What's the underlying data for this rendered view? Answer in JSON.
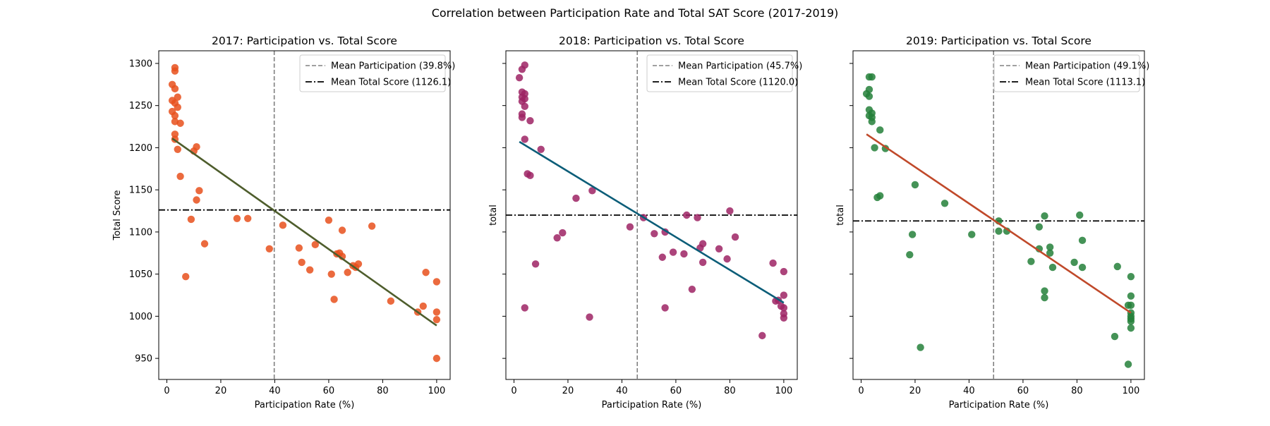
{
  "figure": {
    "title": "Correlation between Participation Rate and Total SAT Score (2017-2019)"
  },
  "chart_data": [
    {
      "type": "scatter",
      "title": "2017: Participation vs. Total Score",
      "xlabel": "Participation Rate (%)",
      "ylabel": "Total Score",
      "xlim": [
        -3,
        105
      ],
      "ylim": [
        925,
        1315
      ],
      "xticks": [
        0,
        20,
        40,
        60,
        80,
        100
      ],
      "yticks": [
        950,
        1000,
        1050,
        1100,
        1150,
        1200,
        1250,
        1300
      ],
      "show_yticklabels": true,
      "grid": false,
      "legend_position": "top-right",
      "point_color": "#e8501c",
      "fit_color": "#4e5d2c",
      "mean_x_label": "Mean Participation (39.8%)",
      "mean_y_label": "Mean Total Score (1126.1)",
      "mean_x": 39.8,
      "mean_y": 1126.1,
      "fit_line": {
        "x": [
          2,
          100
        ],
        "y": [
          1211,
          989
        ]
      },
      "points": [
        [
          3,
          1295
        ],
        [
          3,
          1291
        ],
        [
          2,
          1275
        ],
        [
          3,
          1270
        ],
        [
          4,
          1260
        ],
        [
          2,
          1256
        ],
        [
          3,
          1253
        ],
        [
          4,
          1248
        ],
        [
          2,
          1243
        ],
        [
          3,
          1238
        ],
        [
          3,
          1231
        ],
        [
          5,
          1229
        ],
        [
          3,
          1216
        ],
        [
          3,
          1210
        ],
        [
          4,
          1198
        ],
        [
          10,
          1196
        ],
        [
          11,
          1201
        ],
        [
          5,
          1166
        ],
        [
          12,
          1149
        ],
        [
          11,
          1138
        ],
        [
          9,
          1115
        ],
        [
          14,
          1086
        ],
        [
          7,
          1047
        ],
        [
          26,
          1116
        ],
        [
          30,
          1116
        ],
        [
          43,
          1108
        ],
        [
          38,
          1080
        ],
        [
          60,
          1114
        ],
        [
          65,
          1102
        ],
        [
          76,
          1107
        ],
        [
          49,
          1081
        ],
        [
          55,
          1085
        ],
        [
          50,
          1064
        ],
        [
          53,
          1055
        ],
        [
          63,
          1074
        ],
        [
          64,
          1075
        ],
        [
          65,
          1071
        ],
        [
          61,
          1050
        ],
        [
          67,
          1052
        ],
        [
          70,
          1058
        ],
        [
          71,
          1062
        ],
        [
          69,
          1060
        ],
        [
          62,
          1020
        ],
        [
          83,
          1018
        ],
        [
          93,
          1005
        ],
        [
          95,
          1012
        ],
        [
          96,
          1052
        ],
        [
          100,
          1041
        ],
        [
          100,
          1005
        ],
        [
          100,
          996
        ],
        [
          100,
          950
        ]
      ]
    },
    {
      "type": "scatter",
      "title": "2018: Participation vs. Total Score",
      "xlabel": "Participation Rate (%)",
      "ylabel": "total",
      "xlim": [
        -3,
        105
      ],
      "ylim": [
        925,
        1315
      ],
      "xticks": [
        0,
        20,
        40,
        60,
        80,
        100
      ],
      "yticks": [
        950,
        1000,
        1050,
        1100,
        1150,
        1200,
        1250,
        1300
      ],
      "show_yticklabels": false,
      "grid": false,
      "legend_position": "top-right",
      "point_color": "#9e2364",
      "fit_color": "#0b5d78",
      "mean_x_label": "Mean Participation (45.7%)",
      "mean_y_label": "Mean Total Score (1120.0)",
      "mean_x": 45.7,
      "mean_y": 1120.0,
      "fit_line": {
        "x": [
          2,
          100
        ],
        "y": [
          1207,
          1016
        ]
      },
      "points": [
        [
          4,
          1298
        ],
        [
          3,
          1293
        ],
        [
          2,
          1283
        ],
        [
          3,
          1266
        ],
        [
          4,
          1264
        ],
        [
          3,
          1260
        ],
        [
          4,
          1258
        ],
        [
          3,
          1255
        ],
        [
          4,
          1249
        ],
        [
          3,
          1240
        ],
        [
          3,
          1236
        ],
        [
          6,
          1232
        ],
        [
          4,
          1210
        ],
        [
          10,
          1198
        ],
        [
          5,
          1169
        ],
        [
          6,
          1167
        ],
        [
          29,
          1149
        ],
        [
          23,
          1140
        ],
        [
          18,
          1099
        ],
        [
          16,
          1093
        ],
        [
          8,
          1062
        ],
        [
          4,
          1010
        ],
        [
          28,
          999
        ],
        [
          43,
          1106
        ],
        [
          48,
          1117
        ],
        [
          52,
          1098
        ],
        [
          56,
          1100
        ],
        [
          55,
          1070
        ],
        [
          59,
          1076
        ],
        [
          63,
          1074
        ],
        [
          64,
          1120
        ],
        [
          68,
          1117
        ],
        [
          69,
          1081
        ],
        [
          70,
          1086
        ],
        [
          70,
          1064
        ],
        [
          76,
          1080
        ],
        [
          80,
          1125
        ],
        [
          82,
          1094
        ],
        [
          79,
          1068
        ],
        [
          66,
          1032
        ],
        [
          56,
          1010
        ],
        [
          92,
          977
        ],
        [
          96,
          1063
        ],
        [
          97,
          1018
        ],
        [
          98,
          1019
        ],
        [
          99,
          1012
        ],
        [
          100,
          1010
        ],
        [
          100,
          1053
        ],
        [
          100,
          1025
        ],
        [
          100,
          1003
        ],
        [
          100,
          998
        ]
      ]
    },
    {
      "type": "scatter",
      "title": "2019: Participation vs. Total Score",
      "xlabel": "Participation Rate (%)",
      "ylabel": "total",
      "xlim": [
        -3,
        105
      ],
      "ylim": [
        925,
        1315
      ],
      "xticks": [
        0,
        20,
        40,
        60,
        80,
        100
      ],
      "yticks": [
        950,
        1000,
        1050,
        1100,
        1150,
        1200,
        1250,
        1300
      ],
      "show_yticklabels": false,
      "grid": false,
      "legend_position": "top-right",
      "point_color": "#24803a",
      "fit_color": "#c0492a",
      "mean_x_label": "Mean Participation (49.1%)",
      "mean_y_label": "Mean Total Score (1113.1)",
      "mean_x": 49.1,
      "mean_y": 1113.1,
      "fit_line": {
        "x": [
          2,
          100
        ],
        "y": [
          1216,
          1004
        ]
      },
      "points": [
        [
          3,
          1284
        ],
        [
          4,
          1284
        ],
        [
          3,
          1269
        ],
        [
          2,
          1264
        ],
        [
          3,
          1261
        ],
        [
          3,
          1245
        ],
        [
          4,
          1241
        ],
        [
          3,
          1238
        ],
        [
          4,
          1236
        ],
        [
          4,
          1231
        ],
        [
          7,
          1221
        ],
        [
          5,
          1200
        ],
        [
          9,
          1199
        ],
        [
          20,
          1156
        ],
        [
          7,
          1143
        ],
        [
          6,
          1141
        ],
        [
          31,
          1134
        ],
        [
          19,
          1097
        ],
        [
          18,
          1073
        ],
        [
          41,
          1097
        ],
        [
          22,
          963
        ],
        [
          51,
          1113
        ],
        [
          51,
          1101
        ],
        [
          54,
          1101
        ],
        [
          68,
          1119
        ],
        [
          66,
          1106
        ],
        [
          81,
          1120
        ],
        [
          82,
          1090
        ],
        [
          70,
          1082
        ],
        [
          66,
          1080
        ],
        [
          70,
          1075
        ],
        [
          63,
          1065
        ],
        [
          71,
          1058
        ],
        [
          79,
          1064
        ],
        [
          82,
          1058
        ],
        [
          95,
          1059
        ],
        [
          68,
          1030
        ],
        [
          68,
          1022
        ],
        [
          100,
          1047
        ],
        [
          100,
          1024
        ],
        [
          99,
          1013
        ],
        [
          100,
          1013
        ],
        [
          100,
          1004
        ],
        [
          100,
          1000
        ],
        [
          100,
          997
        ],
        [
          100,
          994
        ],
        [
          100,
          986
        ],
        [
          94,
          976
        ],
        [
          99,
          943
        ]
      ]
    }
  ]
}
